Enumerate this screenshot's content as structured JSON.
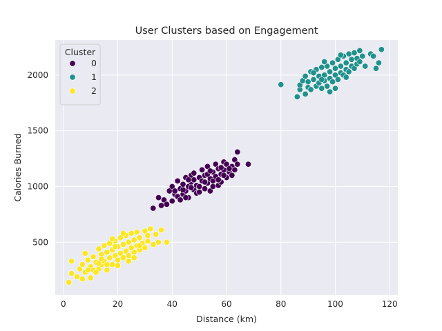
{
  "chart_data": {
    "type": "scatter",
    "title": "User Clusters based on Engagement",
    "xlabel": "Distance (km)",
    "ylabel": "Calories Burned",
    "xlim": [
      -3,
      123
    ],
    "ylim": [
      25,
      2315
    ],
    "xticks": [
      0,
      20,
      40,
      60,
      80,
      100,
      120
    ],
    "yticks": [
      500,
      1000,
      1500,
      2000
    ],
    "grid": true,
    "legend": {
      "title": "Cluster",
      "placement": "upper-left"
    },
    "series": [
      {
        "name": "0",
        "color": "#440154",
        "points": [
          [
            33,
            805
          ],
          [
            35,
            900
          ],
          [
            36,
            830
          ],
          [
            37,
            880
          ],
          [
            38,
            840
          ],
          [
            39,
            960
          ],
          [
            40,
            870
          ],
          [
            40,
            1000
          ],
          [
            41,
            930
          ],
          [
            42,
            910
          ],
          [
            42,
            1050
          ],
          [
            43,
            880
          ],
          [
            43,
            980
          ],
          [
            44,
            1020
          ],
          [
            44,
            930
          ],
          [
            45,
            1080
          ],
          [
            45,
            960
          ],
          [
            46,
            1000
          ],
          [
            46,
            900
          ],
          [
            47,
            1100
          ],
          [
            47,
            1040
          ],
          [
            48,
            970
          ],
          [
            48,
            1120
          ],
          [
            49,
            1010
          ],
          [
            49,
            940
          ],
          [
            50,
            1080
          ],
          [
            50,
            1000
          ],
          [
            51,
            1150
          ],
          [
            51,
            1050
          ],
          [
            52,
            980
          ],
          [
            52,
            1100
          ],
          [
            53,
            1030
          ],
          [
            53,
            1180
          ],
          [
            54,
            1070
          ],
          [
            54,
            960
          ],
          [
            55,
            1130
          ],
          [
            55,
            1050
          ],
          [
            56,
            1200
          ],
          [
            56,
            1090
          ],
          [
            57,
            1010
          ],
          [
            57,
            1160
          ],
          [
            58,
            1110
          ],
          [
            58,
            1040
          ],
          [
            59,
            1220
          ],
          [
            59,
            1150
          ],
          [
            60,
            1080
          ],
          [
            60,
            1200
          ],
          [
            61,
            1130
          ],
          [
            62,
            1180
          ],
          [
            62,
            1100
          ],
          [
            63,
            1240
          ],
          [
            63,
            1150
          ],
          [
            64,
            1310
          ],
          [
            64,
            1200
          ],
          [
            68,
            1200
          ],
          [
            45,
            900
          ],
          [
            50,
            950
          ],
          [
            55,
            1000
          ],
          [
            48,
            1060
          ],
          [
            53,
            1110
          ],
          [
            44,
            970
          ],
          [
            58,
            1170
          ],
          [
            41,
            960
          ],
          [
            47,
            990
          ],
          [
            52,
            1040
          ],
          [
            57,
            1060
          ],
          [
            61,
            1160
          ],
          [
            46,
            1060
          ],
          [
            54,
            1140
          ],
          [
            59,
            1100
          ]
        ]
      },
      {
        "name": "1",
        "color": "#21918c",
        "points": [
          [
            80,
            1915
          ],
          [
            86,
            1805
          ],
          [
            87,
            1870
          ],
          [
            87,
            1910
          ],
          [
            88,
            1950
          ],
          [
            89,
            1830
          ],
          [
            89,
            1990
          ],
          [
            90,
            1890
          ],
          [
            90,
            1940
          ],
          [
            91,
            2030
          ],
          [
            91,
            1870
          ],
          [
            92,
            1960
          ],
          [
            93,
            1900
          ],
          [
            93,
            2050
          ],
          [
            94,
            1930
          ],
          [
            94,
            1990
          ],
          [
            95,
            2070
          ],
          [
            95,
            1880
          ],
          [
            96,
            2000
          ],
          [
            96,
            1950
          ],
          [
            97,
            2080
          ],
          [
            97,
            1900
          ],
          [
            98,
            2030
          ],
          [
            98,
            1970
          ],
          [
            99,
            2110
          ],
          [
            99,
            1940
          ],
          [
            100,
            2060
          ],
          [
            100,
            2000
          ],
          [
            101,
            2140
          ],
          [
            101,
            1960
          ],
          [
            102,
            2080
          ],
          [
            102,
            2020
          ],
          [
            103,
            2170
          ],
          [
            103,
            2000
          ],
          [
            104,
            2110
          ],
          [
            104,
            2050
          ],
          [
            105,
            2190
          ],
          [
            105,
            2030
          ],
          [
            106,
            2140
          ],
          [
            106,
            2080
          ],
          [
            107,
            2200
          ],
          [
            107,
            2060
          ],
          [
            108,
            2150
          ],
          [
            108,
            2100
          ],
          [
            109,
            2220
          ],
          [
            109,
            2120
          ],
          [
            110,
            2170
          ],
          [
            111,
            2080
          ],
          [
            113,
            2190
          ],
          [
            114,
            2170
          ],
          [
            115,
            2060
          ],
          [
            116,
            2110
          ],
          [
            117,
            2230
          ],
          [
            92,
            2020
          ],
          [
            96,
            2120
          ],
          [
            100,
            1880
          ],
          [
            104,
            1980
          ],
          [
            98,
            1850
          ],
          [
            102,
            2180
          ],
          [
            95,
            1960
          ]
        ]
      },
      {
        "name": "2",
        "color": "#fde725",
        "points": [
          [
            2,
            140
          ],
          [
            3,
            220
          ],
          [
            3,
            330
          ],
          [
            5,
            190
          ],
          [
            6,
            260
          ],
          [
            7,
            300
          ],
          [
            7,
            170
          ],
          [
            8,
            400
          ],
          [
            8,
            230
          ],
          [
            9,
            340
          ],
          [
            10,
            280
          ],
          [
            10,
            180
          ],
          [
            11,
            370
          ],
          [
            11,
            250
          ],
          [
            12,
            320
          ],
          [
            13,
            440
          ],
          [
            13,
            260
          ],
          [
            14,
            390
          ],
          [
            14,
            300
          ],
          [
            15,
            470
          ],
          [
            15,
            330
          ],
          [
            16,
            250
          ],
          [
            16,
            410
          ],
          [
            17,
            360
          ],
          [
            17,
            490
          ],
          [
            18,
            300
          ],
          [
            18,
            430
          ],
          [
            19,
            380
          ],
          [
            19,
            510
          ],
          [
            20,
            340
          ],
          [
            20,
            460
          ],
          [
            21,
            400
          ],
          [
            21,
            540
          ],
          [
            22,
            360
          ],
          [
            22,
            480
          ],
          [
            23,
            420
          ],
          [
            23,
            560
          ],
          [
            24,
            380
          ],
          [
            24,
            500
          ],
          [
            25,
            450
          ],
          [
            25,
            580
          ],
          [
            26,
            410
          ],
          [
            26,
            520
          ],
          [
            27,
            470
          ],
          [
            27,
            590
          ],
          [
            28,
            430
          ],
          [
            28,
            540
          ],
          [
            29,
            490
          ],
          [
            30,
            600
          ],
          [
            30,
            450
          ],
          [
            31,
            560
          ],
          [
            31,
            510
          ],
          [
            32,
            620
          ],
          [
            33,
            480
          ],
          [
            34,
            570
          ],
          [
            35,
            500
          ],
          [
            36,
            610
          ],
          [
            38,
            500
          ],
          [
            12,
            230
          ],
          [
            16,
            300
          ],
          [
            20,
            290
          ],
          [
            24,
            330
          ],
          [
            18,
            530
          ],
          [
            14,
            350
          ],
          [
            22,
            580
          ],
          [
            26,
            360
          ],
          [
            9,
            250
          ],
          [
            28,
            470
          ],
          [
            13,
            310
          ],
          [
            19,
            460
          ]
        ]
      }
    ]
  }
}
